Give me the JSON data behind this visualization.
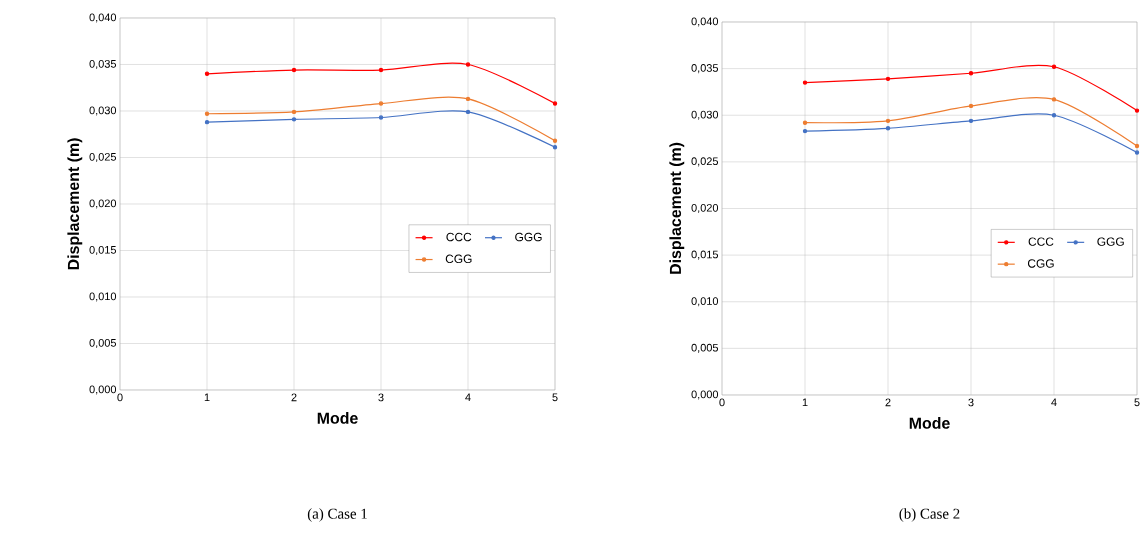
{
  "chart_data": [
    {
      "type": "line",
      "title": "(a)   Case 1",
      "xlabel": "Mode",
      "ylabel": "Displacement (m)",
      "x": [
        1,
        2,
        3,
        4,
        5
      ],
      "series": [
        {
          "name": "CCC",
          "color": "#ff0000",
          "values": [
            0.034,
            0.0344,
            0.0344,
            0.035,
            0.0308
          ]
        },
        {
          "name": "GGG",
          "color": "#4472c4",
          "values": [
            0.0288,
            0.0291,
            0.0293,
            0.0299,
            0.0261
          ]
        },
        {
          "name": "CGG",
          "color": "#ed7d31",
          "values": [
            0.0297,
            0.0299,
            0.0308,
            0.0313,
            0.0268
          ]
        }
      ],
      "xlim": [
        0,
        5
      ],
      "xticks": [
        0,
        1,
        2,
        3,
        4,
        5
      ],
      "ylim": [
        0,
        0.04
      ],
      "yticks": [
        {
          "value": 0,
          "label": "0,000"
        },
        {
          "value": 0.005,
          "label": "0,005"
        },
        {
          "value": 0.01,
          "label": "0,010"
        },
        {
          "value": 0.015,
          "label": "0,015"
        },
        {
          "value": 0.02,
          "label": "0,020"
        },
        {
          "value": 0.025,
          "label": "0,025"
        },
        {
          "value": 0.03,
          "label": "0,030"
        },
        {
          "value": 0.035,
          "label": "0,035"
        },
        {
          "value": 0.04,
          "label": "0,040"
        }
      ],
      "grid": true,
      "legend": "right",
      "marker": "circle",
      "line_style": "solid"
    },
    {
      "type": "line",
      "title": "(b)   Case 2",
      "xlabel": "Mode",
      "ylabel": "Displacement (m)",
      "x": [
        1,
        2,
        3,
        4,
        5
      ],
      "series": [
        {
          "name": "CCC",
          "color": "#ff0000",
          "values": [
            0.0335,
            0.0339,
            0.0345,
            0.0352,
            0.0305
          ]
        },
        {
          "name": "GGG",
          "color": "#4472c4",
          "values": [
            0.0283,
            0.0286,
            0.0294,
            0.03,
            0.026
          ]
        },
        {
          "name": "CGG",
          "color": "#ed7d31",
          "values": [
            0.0292,
            0.0294,
            0.031,
            0.0317,
            0.0267
          ]
        }
      ],
      "xlim": [
        0,
        5
      ],
      "xticks": [
        0,
        1,
        2,
        3,
        4,
        5
      ],
      "ylim": [
        0,
        0.04
      ],
      "yticks": [
        {
          "value": 0,
          "label": "0,000"
        },
        {
          "value": 0.005,
          "label": "0,005"
        },
        {
          "value": 0.01,
          "label": "0,010"
        },
        {
          "value": 0.015,
          "label": "0,015"
        },
        {
          "value": 0.02,
          "label": "0,020"
        },
        {
          "value": 0.025,
          "label": "0,025"
        },
        {
          "value": 0.03,
          "label": "0,030"
        },
        {
          "value": 0.035,
          "label": "0,035"
        },
        {
          "value": 0.04,
          "label": "0,040"
        }
      ],
      "grid": true,
      "legend": "right",
      "marker": "circle",
      "line_style": "solid"
    }
  ]
}
